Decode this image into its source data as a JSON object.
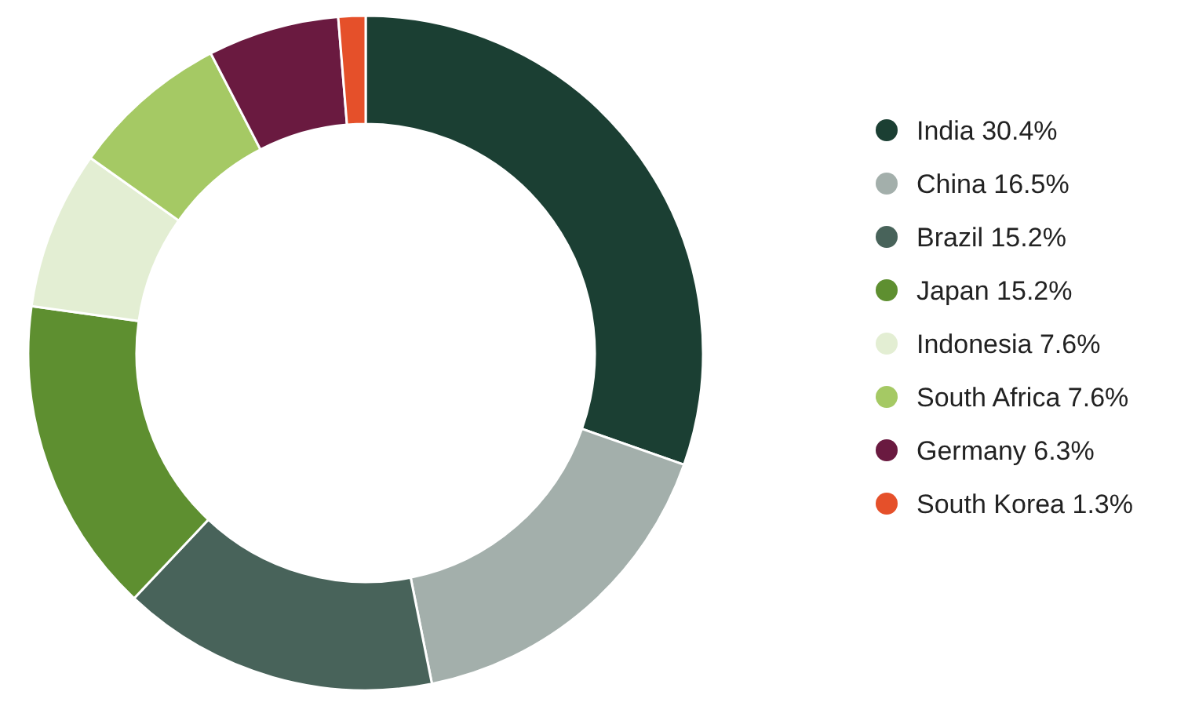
{
  "chart_data": {
    "type": "donut",
    "categories": [
      "India",
      "China",
      "Brazil",
      "Japan",
      "Indonesia",
      "South Africa",
      "Germany",
      "South Korea"
    ],
    "values": [
      30.4,
      16.5,
      15.2,
      15.2,
      7.6,
      7.6,
      6.3,
      1.3
    ],
    "value_labels": [
      "30.4%",
      "16.5%",
      "15.2%",
      "15.2%",
      "7.6%",
      "7.6%",
      "6.3%",
      "1.3%"
    ],
    "colors": [
      "#1b3f33",
      "#a3afab",
      "#48635a",
      "#5e8f30",
      "#e3eed3",
      "#a5c964",
      "#6a1a40",
      "#e5502a"
    ],
    "legend": "right"
  }
}
